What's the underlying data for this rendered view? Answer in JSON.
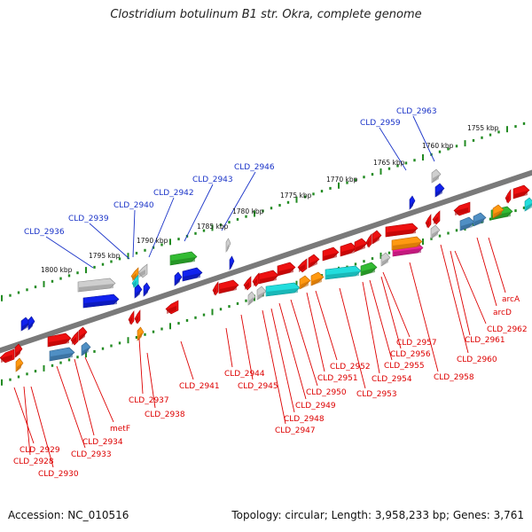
{
  "title": "Clostridium botulinum B1 str. Okra, complete genome",
  "footer": {
    "accession": "Accession: NC_010516",
    "topology": "Topology: circular; Length: 3,958,233 bp; Genes: 3,761"
  },
  "colors": {
    "backbone": "#7a7a7a",
    "ticks": "#228b22",
    "top_labels": "#1a33c8",
    "bottom_labels": "#dd0000",
    "gene_colors": [
      "red",
      "blue",
      "gray",
      "green",
      "cyan",
      "orange",
      "steelblue",
      "magenta"
    ]
  },
  "scale_labels": [
    "1755 kbp",
    "1760 kbp",
    "1765 kbp",
    "1770 kbp",
    "1775 kbp",
    "1780 kbp",
    "1785 kbp",
    "1790 kbp",
    "1795 kbp",
    "1800 kbp"
  ],
  "top_labels": [
    "CLD_2963",
    "CLD_2959",
    "CLD_2946",
    "CLD_2943",
    "CLD_2942",
    "CLD_2940",
    "CLD_2939",
    "CLD_2936"
  ],
  "bottom_labels": [
    "arcA",
    "arcD",
    "CLD_2962",
    "CLD_2961",
    "CLD_2960",
    "CLD_2958",
    "CLD_2957",
    "CLD_2956",
    "CLD_2955",
    "CLD_2954",
    "CLD_2953",
    "CLD_2952",
    "CLD_2951",
    "CLD_2950",
    "CLD_2949",
    "CLD_2948",
    "CLD_2947",
    "CLD_2945",
    "CLD_2944",
    "CLD_2941",
    "CLD_2937",
    "CLD_2938",
    "metF",
    "CLD_2934",
    "CLD_2933",
    "CLD_2929",
    "CLD_2928",
    "CLD_2930"
  ]
}
